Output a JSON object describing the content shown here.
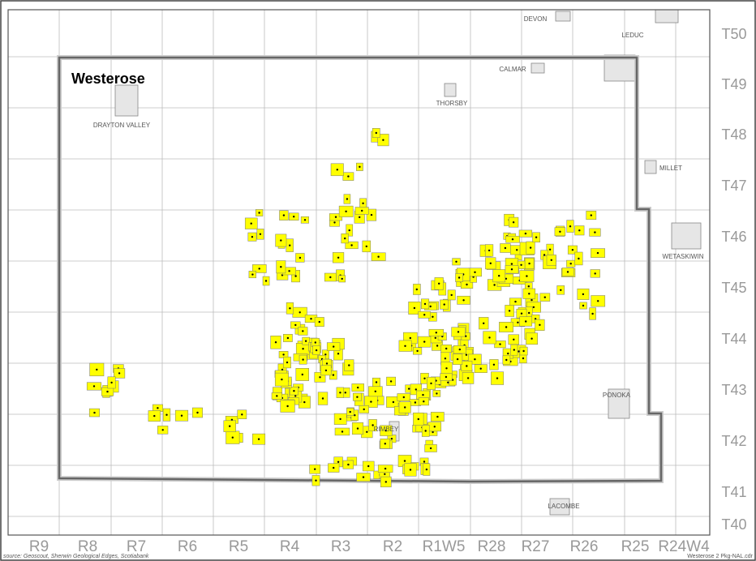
{
  "title": "Westerose",
  "towns": [
    {
      "label": "DEVON"
    },
    {
      "label": "LEDUC"
    },
    {
      "label": "CALMAR"
    },
    {
      "label": "THORSBY"
    },
    {
      "label": "DRAYTON VALLEY"
    },
    {
      "label": "MILLET"
    },
    {
      "label": "WETASKIWIN"
    },
    {
      "label": "PONOKA"
    },
    {
      "label": "RIMBEY"
    },
    {
      "label": "LACOMBE"
    }
  ],
  "ranges": [
    "R9",
    "R8",
    "R7",
    "R6",
    "R5",
    "R4",
    "R3",
    "R2",
    "R1W5",
    "R28",
    "R27",
    "R26",
    "R25",
    "R24W4"
  ],
  "townships": [
    "T50",
    "T49",
    "T48",
    "T47",
    "T46",
    "T45",
    "T44",
    "T43",
    "T42",
    "T41",
    "T40"
  ],
  "source": "source: Geoscout, Sherwin Geological Edges, Scotiabank",
  "footer": "Westerose 2 Pkg-NAL.cdr"
}
